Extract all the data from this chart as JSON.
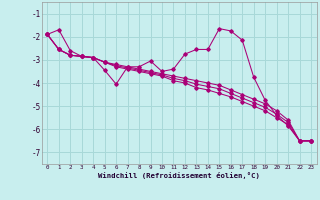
{
  "xlabel": "Windchill (Refroidissement éolien,°C)",
  "background_color": "#c8eeee",
  "grid_color": "#a8d8d8",
  "line_color": "#aa0077",
  "ylim": [
    -7.5,
    -0.5
  ],
  "xlim": [
    -0.5,
    23.5
  ],
  "yticks": [
    -7,
    -6,
    -5,
    -4,
    -3,
    -2,
    -1
  ],
  "xticks": [
    0,
    1,
    2,
    3,
    4,
    5,
    6,
    7,
    8,
    9,
    10,
    11,
    12,
    13,
    14,
    15,
    16,
    17,
    18,
    19,
    20,
    21,
    22,
    23
  ],
  "series": [
    {
      "x": [
        0,
        1,
        2,
        3,
        4,
        5,
        6,
        7,
        8,
        9,
        10,
        11,
        12,
        13,
        14,
        15,
        16,
        17,
        18,
        19,
        20,
        21,
        22,
        23
      ],
      "y": [
        -1.9,
        -1.7,
        -2.6,
        -2.85,
        -2.9,
        -3.45,
        -4.05,
        -3.3,
        -3.3,
        -3.05,
        -3.5,
        -3.4,
        -2.75,
        -2.55,
        -2.55,
        -1.65,
        -1.75,
        -2.15,
        -3.75,
        -4.75,
        -5.4,
        -5.85,
        -6.5,
        -6.5
      ]
    },
    {
      "x": [
        0,
        1,
        2,
        3,
        4,
        5,
        6,
        7,
        8,
        9,
        10,
        11,
        12,
        13,
        14,
        15,
        16,
        17,
        18,
        19,
        20,
        21,
        22,
        23
      ],
      "y": [
        -1.9,
        -2.55,
        -2.8,
        -2.85,
        -2.9,
        -3.1,
        -3.2,
        -3.3,
        -3.4,
        -3.5,
        -3.6,
        -3.7,
        -3.8,
        -3.9,
        -4.0,
        -4.1,
        -4.3,
        -4.5,
        -4.7,
        -4.9,
        -5.2,
        -5.6,
        -6.5,
        -6.5
      ]
    },
    {
      "x": [
        0,
        1,
        2,
        3,
        4,
        5,
        6,
        7,
        8,
        9,
        10,
        11,
        12,
        13,
        14,
        15,
        16,
        17,
        18,
        19,
        20,
        21,
        22,
        23
      ],
      "y": [
        -1.9,
        -2.55,
        -2.8,
        -2.85,
        -2.9,
        -3.1,
        -3.25,
        -3.35,
        -3.45,
        -3.55,
        -3.65,
        -3.8,
        -3.9,
        -4.05,
        -4.15,
        -4.25,
        -4.45,
        -4.65,
        -4.85,
        -5.05,
        -5.35,
        -5.7,
        -6.5,
        -6.5
      ]
    },
    {
      "x": [
        0,
        1,
        2,
        3,
        4,
        5,
        6,
        7,
        8,
        9,
        10,
        11,
        12,
        13,
        14,
        15,
        16,
        17,
        18,
        19,
        20,
        21,
        22,
        23
      ],
      "y": [
        -1.9,
        -2.55,
        -2.8,
        -2.85,
        -2.9,
        -3.1,
        -3.3,
        -3.4,
        -3.5,
        -3.6,
        -3.7,
        -3.9,
        -4.0,
        -4.2,
        -4.3,
        -4.45,
        -4.6,
        -4.8,
        -5.0,
        -5.2,
        -5.5,
        -5.8,
        -6.5,
        -6.5
      ]
    }
  ]
}
